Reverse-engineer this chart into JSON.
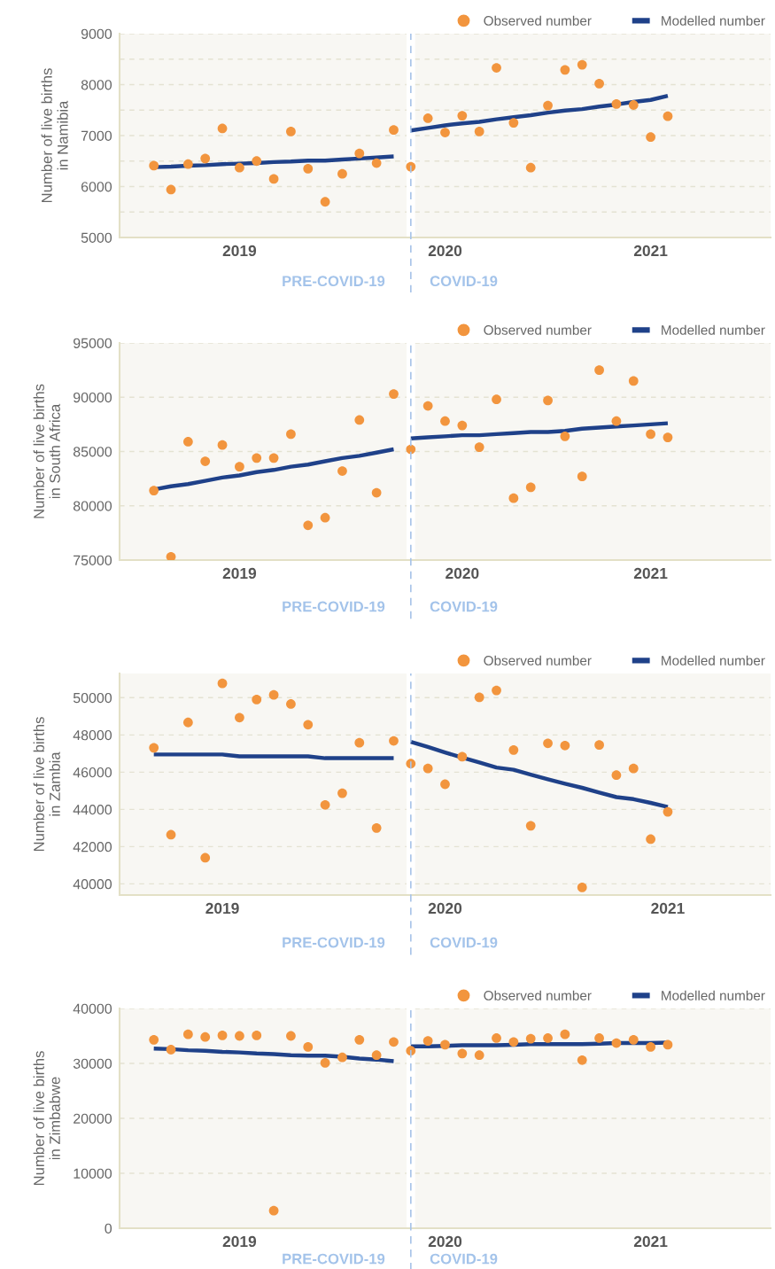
{
  "chart_data": [
    {
      "type": "scatter",
      "ylabel": "Number of live births\nin Namibia",
      "categories": [
        null,
        null,
        null,
        null,
        null,
        "2019",
        null,
        null,
        null,
        null,
        null,
        null,
        null,
        null,
        null,
        null,
        null,
        "2020",
        null,
        null,
        null,
        null,
        null,
        null,
        null,
        null,
        null,
        null,
        null,
        "2021",
        null
      ],
      "series": [
        {
          "name": "Observed number",
          "marker": "circle",
          "color": "#f2953e",
          "values": [
            6410,
            5940,
            6440,
            6550,
            7140,
            6370,
            6500,
            6150,
            7080,
            6350,
            5700,
            6250,
            6650,
            6460,
            7110,
            6390,
            7340,
            7060,
            7390,
            7080,
            8330,
            7250,
            6370,
            7590,
            8290,
            8390,
            8020,
            7620,
            7600,
            6970,
            7380
          ]
        },
        {
          "name": "Modelled number",
          "type": "line",
          "marker": "none",
          "color": "#1f4189",
          "values": [
            6380,
            6390,
            6410,
            6420,
            6440,
            6450,
            6460,
            6480,
            6490,
            6510,
            6510,
            6530,
            6550,
            6570,
            6590,
            null,
            null,
            null,
            null,
            null,
            null,
            null,
            null,
            null,
            null,
            null,
            null,
            null,
            null,
            null,
            null
          ]
        },
        {
          "type": "line",
          "marker": "none",
          "color": "#1f4189",
          "values": [
            null,
            null,
            null,
            null,
            null,
            null,
            null,
            null,
            null,
            null,
            null,
            null,
            null,
            null,
            null,
            7100,
            7150,
            7200,
            7240,
            7270,
            7320,
            7360,
            7400,
            7450,
            7490,
            7520,
            7570,
            7610,
            7660,
            7700,
            7780
          ]
        }
      ],
      "ylim": [
        5000,
        9000
      ],
      "yticks": [
        5000,
        {
          "value": 5500,
          "label": null
        },
        6000,
        {
          "value": 6500,
          "label": null
        },
        7000,
        {
          "value": 7500,
          "label": null
        },
        8000,
        {
          "value": 8500,
          "label": null
        },
        9000
      ],
      "annotations": [
        "PRE-COVID-19",
        "COVID-19"
      ],
      "grid": "y",
      "legend": "top right"
    },
    {
      "type": "scatter",
      "ylabel": "Number of live births\nin South Africa",
      "categories": [
        null,
        null,
        null,
        null,
        null,
        "2019",
        null,
        null,
        null,
        null,
        null,
        null,
        null,
        null,
        null,
        null,
        null,
        null,
        "2020",
        null,
        null,
        null,
        null,
        null,
        null,
        null,
        null,
        null,
        null,
        "2021",
        null
      ],
      "series": [
        {
          "name": "Observed number",
          "marker": "circle",
          "color": "#f2953e",
          "values": [
            81400,
            75300,
            85900,
            84100,
            85600,
            83600,
            84400,
            84400,
            86600,
            78200,
            78900,
            83200,
            87900,
            81200,
            90300,
            85200,
            89200,
            87800,
            87400,
            85400,
            89800,
            80700,
            81700,
            89700,
            86400,
            82700,
            92500,
            87800,
            91500,
            86600,
            86300
          ]
        },
        {
          "name": "Modelled number",
          "type": "line",
          "marker": "none",
          "color": "#1f4189",
          "values": [
            81500,
            81800,
            82000,
            82300,
            82600,
            82800,
            83100,
            83300,
            83600,
            83800,
            84100,
            84400,
            84600,
            84900,
            85200,
            null,
            null,
            null,
            null,
            null,
            null,
            null,
            null,
            null,
            null,
            null,
            null,
            null,
            null,
            null,
            null
          ]
        },
        {
          "type": "line",
          "marker": "none",
          "color": "#1f4189",
          "values": [
            null,
            null,
            null,
            null,
            null,
            null,
            null,
            null,
            null,
            null,
            null,
            null,
            null,
            null,
            null,
            86200,
            86300,
            86400,
            86500,
            86500,
            86600,
            86700,
            86800,
            86800,
            86900,
            87100,
            87200,
            87300,
            87400,
            87500,
            87600
          ]
        }
      ],
      "ylim": [
        75000,
        95000
      ],
      "yticks": [
        75000,
        80000,
        85000,
        90000,
        95000
      ],
      "annotations": [
        "PRE-COVID-19",
        "COVID-19"
      ],
      "grid": "y",
      "legend": "top right"
    },
    {
      "type": "scatter",
      "ylabel": "Number of live births\nin Zambia",
      "categories": [
        null,
        null,
        null,
        null,
        "2019",
        null,
        null,
        null,
        null,
        null,
        null,
        null,
        null,
        null,
        null,
        null,
        null,
        "2020",
        null,
        null,
        null,
        null,
        null,
        null,
        null,
        null,
        null,
        null,
        null,
        null,
        "2021"
      ],
      "series": [
        {
          "name": "Observed number",
          "marker": "circle",
          "color": "#f2953e",
          "values": [
            47310,
            42640,
            48670,
            41400,
            50770,
            48930,
            49900,
            50150,
            49660,
            48550,
            44240,
            44870,
            47580,
            43000,
            47680,
            46460,
            46200,
            45350,
            46830,
            50020,
            50390,
            47190,
            43120,
            47550,
            47430,
            39810,
            47460,
            45840,
            46200,
            42400,
            43870
          ]
        },
        {
          "name": "Modelled number",
          "type": "line",
          "marker": "none",
          "color": "#1f4189",
          "values": [
            46950,
            46950,
            46950,
            46950,
            46950,
            46850,
            46850,
            46850,
            46850,
            46850,
            46750,
            46750,
            46750,
            46750,
            46750,
            null,
            null,
            null,
            null,
            null,
            null,
            null,
            null,
            null,
            null,
            null,
            null,
            null,
            null,
            null,
            null
          ]
        },
        {
          "type": "line",
          "marker": "none",
          "color": "#1f4189",
          "values": [
            null,
            null,
            null,
            null,
            null,
            null,
            null,
            null,
            null,
            null,
            null,
            null,
            null,
            null,
            null,
            47630,
            47350,
            47060,
            46780,
            46520,
            46250,
            46130,
            45870,
            45620,
            45380,
            45160,
            44900,
            44660,
            44550,
            44350,
            44130
          ]
        }
      ],
      "ylim": [
        39400,
        51300
      ],
      "yticks": [
        40000,
        42000,
        44000,
        46000,
        48000,
        50000
      ],
      "annotations": [
        "PRE-COVID-19",
        "COVID-19"
      ],
      "grid": "y",
      "legend": "top right"
    },
    {
      "type": "scatter",
      "ylabel": "Number of live births\nin Zimbabwe",
      "categories": [
        null,
        null,
        null,
        null,
        null,
        "2019",
        null,
        null,
        null,
        null,
        null,
        null,
        null,
        null,
        null,
        null,
        null,
        "2020",
        null,
        null,
        null,
        null,
        null,
        null,
        null,
        null,
        null,
        null,
        null,
        "2021",
        null
      ],
      "series": [
        {
          "name": "Observed number",
          "marker": "circle",
          "color": "#f2953e",
          "values": [
            34300,
            32500,
            35300,
            34800,
            35100,
            35000,
            35100,
            3200,
            35000,
            33000,
            30100,
            31100,
            34300,
            31500,
            33900,
            32300,
            34100,
            33400,
            31800,
            31500,
            34600,
            33900,
            34500,
            34600,
            35300,
            30600,
            34600,
            33700,
            34300,
            33000,
            33400
          ]
        },
        {
          "name": "Modelled number",
          "type": "line",
          "marker": "none",
          "color": "#1f4189",
          "values": [
            32700,
            32600,
            32400,
            32300,
            32100,
            32000,
            31800,
            31700,
            31500,
            31400,
            31400,
            31200,
            30900,
            30700,
            30400,
            null,
            null,
            null,
            null,
            null,
            null,
            null,
            null,
            null,
            null,
            null,
            null,
            null,
            null,
            null,
            null
          ]
        },
        {
          "type": "line",
          "marker": "none",
          "color": "#1f4189",
          "values": [
            null,
            null,
            null,
            null,
            null,
            null,
            null,
            null,
            null,
            null,
            null,
            null,
            null,
            null,
            null,
            33100,
            33100,
            33200,
            33300,
            33300,
            33300,
            33400,
            33500,
            33500,
            33500,
            33500,
            33600,
            33700,
            33700,
            33700,
            33800
          ]
        }
      ],
      "ylim": [
        0,
        40000
      ],
      "yticks": [
        0,
        10000,
        20000,
        30000,
        40000
      ],
      "annotations": [
        "PRE-COVID-19",
        "COVID-19"
      ],
      "grid": "y",
      "legend": "top right"
    }
  ]
}
